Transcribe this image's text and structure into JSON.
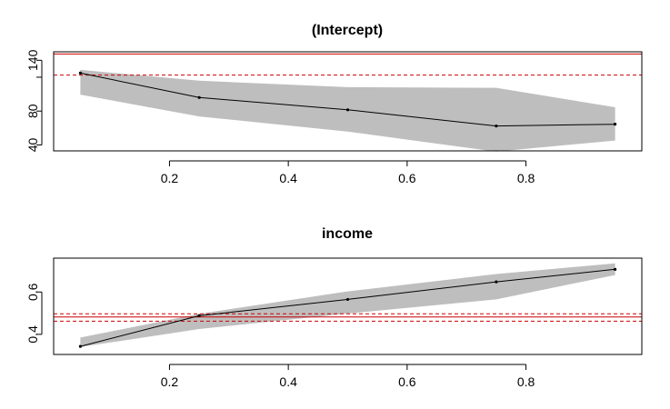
{
  "chart_data": [
    {
      "type": "line",
      "title": "(Intercept)",
      "xlabel": "",
      "ylabel": "",
      "x": [
        0.05,
        0.25,
        0.5,
        0.75,
        0.95
      ],
      "xlim": [
        0.005,
        0.995
      ],
      "ylim": [
        33,
        150
      ],
      "xticks": [
        0.2,
        0.4,
        0.6,
        0.8
      ],
      "xtick_labels": [
        "0.2",
        "0.4",
        "0.6",
        "0.8"
      ],
      "yticks": [
        40,
        80,
        120,
        140
      ],
      "ytick_labels": [
        "40",
        "80",
        "",
        "140"
      ],
      "grid": false,
      "series": [
        {
          "values": [
            124.9,
            96.0,
            81.5,
            62.4,
            64.5
          ]
        }
      ],
      "band": {
        "lower": [
          99.4,
          73.7,
          55.8,
          32.1,
          45.2
        ],
        "upper": [
          128.6,
          115.9,
          108.2,
          107.5,
          84.5
        ],
        "color": "#bebebe"
      },
      "reference_lines": [
        {
          "y": 147.5,
          "style": "solid",
          "color": "#cc0000"
        },
        {
          "y": 122.5,
          "style": "dashed",
          "color": "#cc0000"
        }
      ]
    },
    {
      "type": "line",
      "title": "income",
      "xlabel": "",
      "ylabel": "",
      "x": [
        0.05,
        0.25,
        0.5,
        0.75,
        0.95
      ],
      "xlim": [
        0.005,
        0.995
      ],
      "ylim": [
        0.305,
        0.76
      ],
      "xticks": [
        0.2,
        0.4,
        0.6,
        0.8
      ],
      "xtick_labels": [
        "0.2",
        "0.4",
        "0.6",
        "0.8"
      ],
      "yticks": [
        0.4,
        0.6
      ],
      "ytick_labels": [
        "0.4",
        "0.6"
      ],
      "grid": false,
      "series": [
        {
          "values": [
            0.343,
            0.488,
            0.565,
            0.648,
            0.707
          ]
        }
      ],
      "band": {
        "lower": [
          0.34,
          0.425,
          0.498,
          0.565,
          0.68
        ],
        "upper": [
          0.385,
          0.497,
          0.603,
          0.685,
          0.735
        ],
        "color": "#bebebe"
      },
      "reference_lines": [
        {
          "y": 0.497,
          "style": "dashed",
          "color": "#cc0000"
        },
        {
          "y": 0.482,
          "style": "solid",
          "color": "#cc0000"
        },
        {
          "y": 0.462,
          "style": "dashed",
          "color": "#cc0000"
        }
      ]
    }
  ]
}
